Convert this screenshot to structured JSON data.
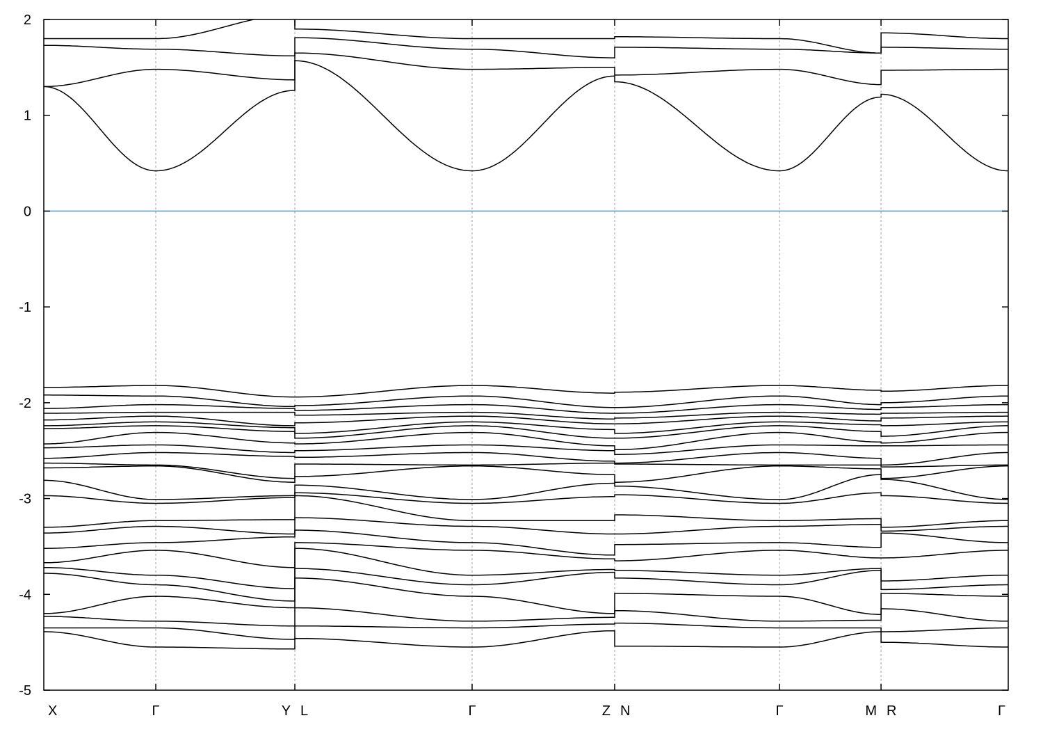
{
  "chart_data": {
    "type": "line",
    "title": "",
    "xlabel": "",
    "ylabel": "",
    "ylim": [
      -5,
      2
    ],
    "yticks": [
      2,
      1,
      0,
      -1,
      -2,
      -3,
      -4,
      -5
    ],
    "xlim": [
      0,
      1
    ],
    "kpoints": [
      {
        "k": 0,
        "labels": [
          "X"
        ]
      },
      {
        "k": 0.1161,
        "labels": [
          "Γ"
        ]
      },
      {
        "k": 0.2603,
        "labels": [
          "Y",
          "L"
        ]
      },
      {
        "k": 0.4441,
        "labels": [
          "Γ"
        ]
      },
      {
        "k": 0.5919,
        "labels": [
          "Z",
          "N"
        ]
      },
      {
        "k": 0.7628,
        "labels": [
          "Γ"
        ]
      },
      {
        "k": 0.8681,
        "labels": [
          "M",
          "R"
        ]
      },
      {
        "k": 1,
        "labels": [
          "Γ"
        ]
      }
    ],
    "path_point_k": [
      0,
      0.1161,
      0.2603,
      0.2603,
      0.4441,
      0.5919,
      0.5919,
      0.7628,
      0.8681,
      0.8681,
      1
    ],
    "path_point_names": [
      "X",
      "Γ",
      "Y",
      "L",
      "Γ",
      "Z",
      "N",
      "Γ",
      "M",
      "R",
      "Γ"
    ],
    "fermi_level": 0,
    "colors": {
      "bands": "#000000",
      "fermi": "#3ba4dc",
      "grid": "#a0a0a0"
    },
    "conduction_bands": [
      [
        1.3,
        0.42,
        1.26,
        1.57,
        0.42,
        1.41,
        1.35,
        0.42,
        1.19,
        1.22,
        0.42
      ],
      [
        1.3,
        1.48,
        1.37,
        1.65,
        1.48,
        1.5,
        1.42,
        1.48,
        1.32,
        1.47,
        1.48
      ],
      [
        1.73,
        1.69,
        1.62,
        1.81,
        1.69,
        1.6,
        1.71,
        1.69,
        1.65,
        1.71,
        1.69
      ],
      [
        1.8,
        1.8,
        2.05,
        1.9,
        1.8,
        1.8,
        1.82,
        1.8,
        1.65,
        1.86,
        1.8
      ]
    ],
    "valence_at_points": {
      "X": [
        -1.84,
        -1.92,
        -2.06,
        -2.11,
        -2.18,
        -2.24,
        -2.27,
        -2.43,
        -2.47,
        -2.58,
        -2.63,
        -2.68,
        -2.81,
        -2.97,
        -3.3,
        -3.36,
        -3.52,
        -3.67,
        -3.72,
        -3.78,
        -4.2,
        -4.23,
        -4.35,
        -4.39
      ],
      "G": [
        -1.82,
        -1.93,
        -2.02,
        -2.1,
        -2.14,
        -2.2,
        -2.24,
        -2.31,
        -2.44,
        -2.52,
        -2.65,
        -2.66,
        -3.01,
        -3.05,
        -3.23,
        -3.29,
        -3.46,
        -3.54,
        -3.8,
        -3.9,
        -4.02,
        -4.28,
        -4.35,
        -4.55
      ],
      "Y": [
        -1.94,
        -2.04,
        -2.06,
        -2.1,
        -2.24,
        -2.26,
        -2.3,
        -2.42,
        -2.52,
        -2.56,
        -2.79,
        -2.83,
        -2.97,
        -2.99,
        -3.22,
        -3.37,
        -3.4,
        -3.72,
        -3.94,
        -4.07,
        -4.14,
        -4.33,
        -4.47,
        -4.57
      ],
      "L": [
        -1.94,
        -2.03,
        -2.08,
        -2.13,
        -2.21,
        -2.32,
        -2.37,
        -2.43,
        -2.5,
        -2.57,
        -2.64,
        -2.77,
        -2.86,
        -2.94,
        -2.97,
        -3.2,
        -3.33,
        -3.46,
        -3.52,
        -3.73,
        -3.83,
        -4.14,
        -4.33,
        -4.46
      ],
      "Z": [
        -1.9,
        -2.05,
        -2.11,
        -2.17,
        -2.22,
        -2.28,
        -2.37,
        -2.45,
        -2.5,
        -2.61,
        -2.63,
        -2.75,
        -2.84,
        -2.98,
        -3.23,
        -3.37,
        -3.59,
        -3.63,
        -3.74,
        -3.77,
        -4.2,
        -4.24,
        -4.31,
        -4.38
      ],
      "N": [
        -1.89,
        -2.05,
        -2.11,
        -2.16,
        -2.22,
        -2.32,
        -2.37,
        -2.49,
        -2.54,
        -2.63,
        -2.64,
        -2.83,
        -2.87,
        -2.96,
        -3.17,
        -3.37,
        -3.48,
        -3.65,
        -3.75,
        -3.83,
        -3.99,
        -4.17,
        -4.3,
        -4.54
      ],
      "M": [
        -1.87,
        -2.02,
        -2.07,
        -2.12,
        -2.19,
        -2.23,
        -2.3,
        -2.41,
        -2.45,
        -2.58,
        -2.65,
        -2.69,
        -2.75,
        -2.94,
        -3.21,
        -3.27,
        -3.51,
        -3.62,
        -3.73,
        -3.75,
        -4.21,
        -4.27,
        -4.35,
        -4.39
      ],
      "R": [
        -1.88,
        -2.0,
        -2.05,
        -2.11,
        -2.16,
        -2.24,
        -2.35,
        -2.42,
        -2.45,
        -2.65,
        -2.67,
        -2.79,
        -2.8,
        -2.97,
        -3.3,
        -3.34,
        -3.36,
        -3.62,
        -3.86,
        -3.95,
        -3.99,
        -4.15,
        -4.39,
        -4.5
      ]
    }
  }
}
